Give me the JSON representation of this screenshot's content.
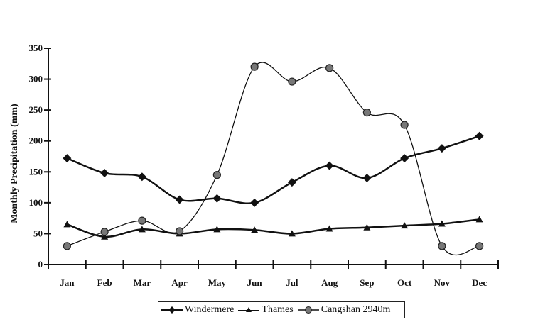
{
  "chart_data": {
    "type": "line",
    "title": "",
    "xlabel": "",
    "ylabel": "Monthly Precipitation (mm)",
    "ylim": [
      0,
      350
    ],
    "yticks": [
      0,
      50,
      100,
      150,
      200,
      250,
      300,
      350
    ],
    "grid": false,
    "legend_position": "bottom",
    "categories": [
      "Jan",
      "Feb",
      "Mar",
      "Apr",
      "May",
      "Jun",
      "Jul",
      "Aug",
      "Sep",
      "Oct",
      "Nov",
      "Dec"
    ],
    "series": [
      {
        "name": "Windermere",
        "marker": "diamond",
        "values": [
          172,
          148,
          142,
          105,
          107,
          100,
          133,
          160,
          140,
          172,
          188,
          208
        ]
      },
      {
        "name": "Thames",
        "marker": "triangle",
        "values": [
          65,
          45,
          57,
          50,
          57,
          56,
          50,
          58,
          60,
          63,
          66,
          73
        ]
      },
      {
        "name": "Cangshan 2940m",
        "marker": "circle",
        "values": [
          30,
          53,
          71,
          54,
          145,
          320,
          296,
          318,
          246,
          226,
          30,
          30
        ]
      }
    ]
  },
  "legend": {
    "items": [
      "Windermere",
      "Thames",
      "Cangshan 2940m"
    ]
  }
}
